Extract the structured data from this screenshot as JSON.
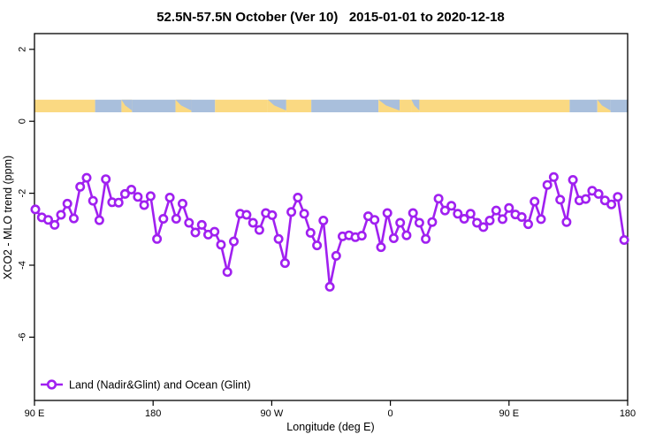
{
  "title": "52.5N-57.5N October (Ver 10)   2015-01-01 to 2020-12-18",
  "chart_data": {
    "type": "line",
    "title": "52.5N-57.5N October (Ver 10)   2015-01-01 to 2020-12-18",
    "x_axis": {
      "label": "Longitude (deg E)",
      "traversal_range_deg": [
        90,
        540
      ],
      "ticks": [
        {
          "t": 90,
          "label": "90 E"
        },
        {
          "t": 180,
          "label": "180"
        },
        {
          "t": 270,
          "label": "90 W"
        },
        {
          "t": 360,
          "label": "0"
        },
        {
          "t": 450,
          "label": "90 E"
        },
        {
          "t": 540,
          "label": "180"
        }
      ]
    },
    "y_axis": {
      "label": "XCO2 - MLO trend (ppm)",
      "range": [
        -7.8,
        2.4
      ],
      "ticks": [
        2,
        0,
        -2,
        -4,
        -6
      ]
    },
    "grid": false,
    "legend": {
      "position": "bottom-left",
      "entries": [
        {
          "label": "Land (Nadir&Glint) and Ocean (Glint)",
          "color": "#A020F0",
          "marker": "open-circle"
        }
      ]
    },
    "surface_strip": {
      "description": "land/ocean strip",
      "y_ppm": [
        0.25,
        0.6
      ],
      "land_color": "#FAD982",
      "ocean_color": "#A9BFDC",
      "segments": [
        {
          "t0": 90,
          "t1": 136,
          "type": "land"
        },
        {
          "t0": 136,
          "t1": 156,
          "type": "ocean"
        },
        {
          "t0": 156,
          "t1": 164,
          "type": "mix"
        },
        {
          "t0": 164,
          "t1": 197,
          "type": "ocean"
        },
        {
          "t0": 197,
          "t1": 209,
          "type": "mix"
        },
        {
          "t0": 209,
          "t1": 227,
          "type": "ocean"
        },
        {
          "t0": 227,
          "t1": 267,
          "type": "land"
        },
        {
          "t0": 267,
          "t1": 281,
          "type": "mix"
        },
        {
          "t0": 281,
          "t1": 300,
          "type": "land"
        },
        {
          "t0": 300,
          "t1": 351,
          "type": "ocean"
        },
        {
          "t0": 351,
          "t1": 367,
          "type": "mix"
        },
        {
          "t0": 367,
          "t1": 376,
          "type": "land"
        },
        {
          "t0": 376,
          "t1": 382,
          "type": "mix"
        },
        {
          "t0": 382,
          "t1": 496,
          "type": "land"
        },
        {
          "t0": 496,
          "t1": 517,
          "type": "ocean"
        },
        {
          "t0": 517,
          "t1": 527,
          "type": "mix"
        },
        {
          "t0": 527,
          "t1": 540,
          "type": "ocean"
        }
      ]
    },
    "series": [
      {
        "name": "Land (Nadir&Glint) and Ocean (Glint)",
        "color": "#A020F0",
        "marker": "open-circle",
        "x_start_deg": 90.7,
        "x_step_deg": 4.855,
        "values": [
          -2.45,
          -2.67,
          -2.74,
          -2.88,
          -2.6,
          -2.29,
          -2.7,
          -1.82,
          -1.57,
          -2.21,
          -2.75,
          -1.61,
          -2.25,
          -2.26,
          -2.02,
          -1.9,
          -2.1,
          -2.33,
          -2.08,
          -3.27,
          -2.71,
          -2.12,
          -2.71,
          -2.29,
          -2.82,
          -3.09,
          -2.88,
          -3.15,
          -3.07,
          -3.43,
          -4.19,
          -3.34,
          -2.57,
          -2.6,
          -2.82,
          -3.02,
          -2.55,
          -2.61,
          -3.27,
          -3.94,
          -2.52,
          -2.12,
          -2.57,
          -3.1,
          -3.45,
          -2.76,
          -4.6,
          -3.74,
          -3.2,
          -3.17,
          -3.22,
          -3.18,
          -2.64,
          -2.74,
          -3.5,
          -2.55,
          -3.25,
          -2.82,
          -3.17,
          -2.55,
          -2.82,
          -3.27,
          -2.8,
          -2.15,
          -2.48,
          -2.35,
          -2.57,
          -2.71,
          -2.57,
          -2.82,
          -2.94,
          -2.76,
          -2.48,
          -2.72,
          -2.41,
          -2.59,
          -2.66,
          -2.86,
          -2.23,
          -2.72,
          -1.77,
          -1.55,
          -2.18,
          -2.8,
          -1.63,
          -2.2,
          -2.16,
          -1.93,
          -2.02,
          -2.2,
          -2.31,
          -2.1,
          -3.3
        ]
      }
    ]
  }
}
